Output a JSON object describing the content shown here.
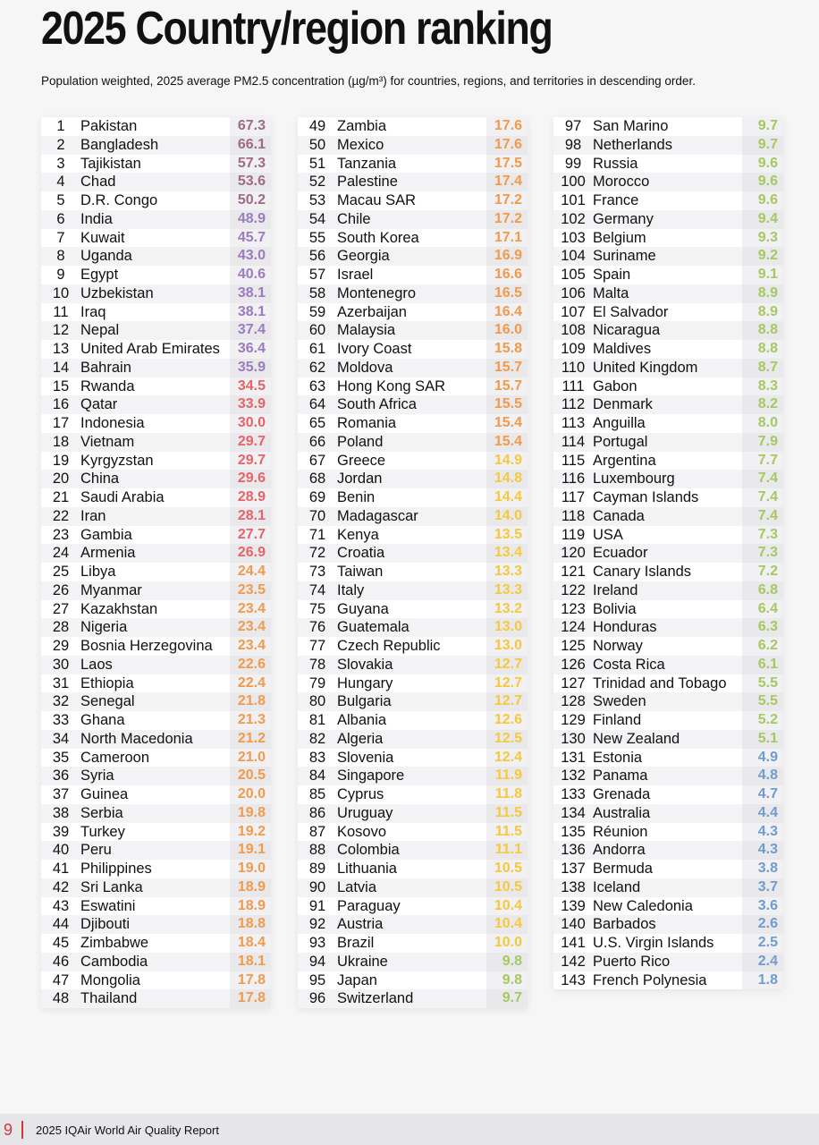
{
  "title": "2025 Country/region ranking",
  "subtitle": "Population weighted, 2025 average PM2.5 concentration (µg/m³) for countries, regions, and territories in descending order.",
  "colors": {
    "above50": "#9e6b86",
    "35to50": "#9b7bbf",
    "25to35": "#e8626a",
    "15to25": "#f29a4c",
    "10to15": "#f6c83e",
    "5to10": "#a6c862",
    "below5": "#6f9bcf"
  },
  "rankings": [
    [
      1,
      "Pakistan",
      "67.3"
    ],
    [
      2,
      "Bangladesh",
      "66.1"
    ],
    [
      3,
      "Tajikistan",
      "57.3"
    ],
    [
      4,
      "Chad",
      "53.6"
    ],
    [
      5,
      "D.R. Congo",
      "50.2"
    ],
    [
      6,
      "India",
      "48.9"
    ],
    [
      7,
      "Kuwait",
      "45.7"
    ],
    [
      8,
      "Uganda",
      "43.0"
    ],
    [
      9,
      "Egypt",
      "40.6"
    ],
    [
      10,
      "Uzbekistan",
      "38.1"
    ],
    [
      11,
      "Iraq",
      "38.1"
    ],
    [
      12,
      "Nepal",
      "37.4"
    ],
    [
      13,
      "United Arab Emirates",
      "36.4"
    ],
    [
      14,
      "Bahrain",
      "35.9"
    ],
    [
      15,
      "Rwanda",
      "34.5"
    ],
    [
      16,
      "Qatar",
      "33.9"
    ],
    [
      17,
      "Indonesia",
      "30.0"
    ],
    [
      18,
      "Vietnam",
      "29.7"
    ],
    [
      19,
      "Kyrgyzstan",
      "29.7"
    ],
    [
      20,
      "China",
      "29.6"
    ],
    [
      21,
      "Saudi Arabia",
      "28.9"
    ],
    [
      22,
      "Iran",
      "28.1"
    ],
    [
      23,
      "Gambia",
      "27.7"
    ],
    [
      24,
      "Armenia",
      "26.9"
    ],
    [
      25,
      "Libya",
      "24.4"
    ],
    [
      26,
      "Myanmar",
      "23.5"
    ],
    [
      27,
      "Kazakhstan",
      "23.4"
    ],
    [
      28,
      "Nigeria",
      "23.4"
    ],
    [
      29,
      "Bosnia Herzegovina",
      "23.4"
    ],
    [
      30,
      "Laos",
      "22.6"
    ],
    [
      31,
      "Ethiopia",
      "22.4"
    ],
    [
      32,
      "Senegal",
      "21.8"
    ],
    [
      33,
      "Ghana",
      "21.3"
    ],
    [
      34,
      "North Macedonia",
      "21.2"
    ],
    [
      35,
      "Cameroon",
      "21.0"
    ],
    [
      36,
      "Syria",
      "20.5"
    ],
    [
      37,
      "Guinea",
      "20.0"
    ],
    [
      38,
      "Serbia",
      "19.8"
    ],
    [
      39,
      "Turkey",
      "19.2"
    ],
    [
      40,
      "Peru",
      "19.1"
    ],
    [
      41,
      "Philippines",
      "19.0"
    ],
    [
      42,
      "Sri Lanka",
      "18.9"
    ],
    [
      43,
      "Eswatini",
      "18.9"
    ],
    [
      44,
      "Djibouti",
      "18.8"
    ],
    [
      45,
      "Zimbabwe",
      "18.4"
    ],
    [
      46,
      "Cambodia",
      "18.1"
    ],
    [
      47,
      "Mongolia",
      "17.8"
    ],
    [
      48,
      "Thailand",
      "17.8"
    ],
    [
      49,
      "Zambia",
      "17.6"
    ],
    [
      50,
      "Mexico",
      "17.6"
    ],
    [
      51,
      "Tanzania",
      "17.5"
    ],
    [
      52,
      "Palestine",
      "17.4"
    ],
    [
      53,
      "Macau SAR",
      "17.2"
    ],
    [
      54,
      "Chile",
      "17.2"
    ],
    [
      55,
      "South Korea",
      "17.1"
    ],
    [
      56,
      "Georgia",
      "16.9"
    ],
    [
      57,
      "Israel",
      "16.6"
    ],
    [
      58,
      "Montenegro",
      "16.5"
    ],
    [
      59,
      "Azerbaijan",
      "16.4"
    ],
    [
      60,
      "Malaysia",
      "16.0"
    ],
    [
      61,
      "Ivory Coast",
      "15.8"
    ],
    [
      62,
      "Moldova",
      "15.7"
    ],
    [
      63,
      "Hong Kong SAR",
      "15.7"
    ],
    [
      64,
      "South Africa",
      "15.5"
    ],
    [
      65,
      "Romania",
      "15.4"
    ],
    [
      66,
      "Poland",
      "15.4"
    ],
    [
      67,
      "Greece",
      "14.9"
    ],
    [
      68,
      "Jordan",
      "14.8"
    ],
    [
      69,
      "Benin",
      "14.4"
    ],
    [
      70,
      "Madagascar",
      "14.0"
    ],
    [
      71,
      "Kenya",
      "13.5"
    ],
    [
      72,
      "Croatia",
      "13.4"
    ],
    [
      73,
      "Taiwan",
      "13.3"
    ],
    [
      74,
      "Italy",
      "13.3"
    ],
    [
      75,
      "Guyana",
      "13.2"
    ],
    [
      76,
      "Guatemala",
      "13.0"
    ],
    [
      77,
      "Czech Republic",
      "13.0"
    ],
    [
      78,
      "Slovakia",
      "12.7"
    ],
    [
      79,
      "Hungary",
      "12.7"
    ],
    [
      80,
      "Bulgaria",
      "12.7"
    ],
    [
      81,
      "Albania",
      "12.6"
    ],
    [
      82,
      "Algeria",
      "12.5"
    ],
    [
      83,
      "Slovenia",
      "12.4"
    ],
    [
      84,
      "Singapore",
      "11.9"
    ],
    [
      85,
      "Cyprus",
      "11.8"
    ],
    [
      86,
      "Uruguay",
      "11.5"
    ],
    [
      87,
      "Kosovo",
      "11.5"
    ],
    [
      88,
      "Colombia",
      "11.1"
    ],
    [
      89,
      "Lithuania",
      "10.5"
    ],
    [
      90,
      "Latvia",
      "10.5"
    ],
    [
      91,
      "Paraguay",
      "10.4"
    ],
    [
      92,
      "Austria",
      "10.4"
    ],
    [
      93,
      "Brazil",
      "10.0"
    ],
    [
      94,
      "Ukraine",
      "9.8"
    ],
    [
      95,
      "Japan",
      "9.8"
    ],
    [
      96,
      "Switzerland",
      "9.7"
    ],
    [
      97,
      "San Marino",
      "9.7"
    ],
    [
      98,
      "Netherlands",
      "9.7"
    ],
    [
      99,
      "Russia",
      "9.6"
    ],
    [
      100,
      "Morocco",
      "9.6"
    ],
    [
      101,
      "France",
      "9.6"
    ],
    [
      102,
      "Germany",
      "9.4"
    ],
    [
      103,
      "Belgium",
      "9.3"
    ],
    [
      104,
      "Suriname",
      "9.2"
    ],
    [
      105,
      "Spain",
      "9.1"
    ],
    [
      106,
      "Malta",
      "8.9"
    ],
    [
      107,
      "El Salvador",
      "8.9"
    ],
    [
      108,
      "Nicaragua",
      "8.8"
    ],
    [
      109,
      "Maldives",
      "8.8"
    ],
    [
      110,
      "United Kingdom",
      "8.7"
    ],
    [
      111,
      "Gabon",
      "8.3"
    ],
    [
      112,
      "Denmark",
      "8.2"
    ],
    [
      113,
      "Anguilla",
      "8.0"
    ],
    [
      114,
      "Portugal",
      "7.9"
    ],
    [
      115,
      "Argentina",
      "7.7"
    ],
    [
      116,
      "Luxembourg",
      "7.4"
    ],
    [
      117,
      "Cayman Islands",
      "7.4"
    ],
    [
      118,
      "Canada",
      "7.4"
    ],
    [
      119,
      "USA",
      "7.3"
    ],
    [
      120,
      "Ecuador",
      "7.3"
    ],
    [
      121,
      "Canary Islands",
      "7.2"
    ],
    [
      122,
      "Ireland",
      "6.8"
    ],
    [
      123,
      "Bolivia",
      "6.4"
    ],
    [
      124,
      "Honduras",
      "6.3"
    ],
    [
      125,
      "Norway",
      "6.2"
    ],
    [
      126,
      "Costa Rica",
      "6.1"
    ],
    [
      127,
      "Trinidad and Tobago",
      "5.5"
    ],
    [
      128,
      "Sweden",
      "5.5"
    ],
    [
      129,
      "Finland",
      "5.2"
    ],
    [
      130,
      "New Zealand",
      "5.1"
    ],
    [
      131,
      "Estonia",
      "4.9"
    ],
    [
      132,
      "Panama",
      "4.8"
    ],
    [
      133,
      "Grenada",
      "4.7"
    ],
    [
      134,
      "Australia",
      "4.4"
    ],
    [
      135,
      "Réunion",
      "4.3"
    ],
    [
      136,
      "Andorra",
      "4.3"
    ],
    [
      137,
      "Bermuda",
      "3.8"
    ],
    [
      138,
      "Iceland",
      "3.7"
    ],
    [
      139,
      "New Caledonia",
      "3.6"
    ],
    [
      140,
      "Barbados",
      "2.6"
    ],
    [
      141,
      "U.S. Virgin Islands",
      "2.5"
    ],
    [
      142,
      "Puerto Rico",
      "2.4"
    ],
    [
      143,
      "French Polynesia",
      "1.8"
    ]
  ],
  "footer": {
    "page_number": "9",
    "report_title": "2025 IQAir World Air Quality Report"
  }
}
